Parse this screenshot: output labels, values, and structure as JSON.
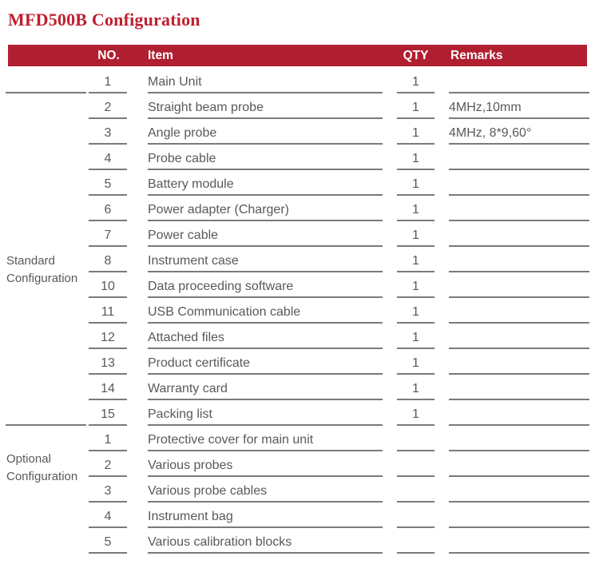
{
  "title": "MFD500B Configuration",
  "colors": {
    "title": "#C01F2F",
    "header_bg": "#B01F30",
    "text": "#595959",
    "line": "#7A7A7A",
    "header_text": "#FFFFFF"
  },
  "table": {
    "columns": [
      "NO.",
      "Item",
      "QTY",
      "Remarks"
    ],
    "sections": [
      {
        "label": "Standard Configuration",
        "rows": [
          {
            "no": "1",
            "item": "Main Unit",
            "qty": "1",
            "remarks": ""
          },
          {
            "no": "2",
            "item": "Straight beam probe",
            "qty": "1",
            "remarks": "4MHz,10mm"
          },
          {
            "no": "3",
            "item": "Angle probe",
            "qty": "1",
            "remarks": "4MHz, 8*9,60°"
          },
          {
            "no": "4",
            "item": "Probe cable",
            "qty": "1",
            "remarks": ""
          },
          {
            "no": "5",
            "item": "Battery module",
            "qty": "1",
            "remarks": ""
          },
          {
            "no": "6",
            "item": "Power adapter (Charger)",
            "qty": "1",
            "remarks": ""
          },
          {
            "no": "7",
            "item": "Power cable",
            "qty": "1",
            "remarks": ""
          },
          {
            "no": "8",
            "item": "Instrument case",
            "qty": "1",
            "remarks": ""
          },
          {
            "no": "10",
            "item": "Data proceeding software",
            "qty": "1",
            "remarks": ""
          },
          {
            "no": "11",
            "item": "USB Communication cable",
            "qty": "1",
            "remarks": ""
          },
          {
            "no": "12",
            "item": "Attached files",
            "qty": "1",
            "remarks": ""
          },
          {
            "no": "13",
            "item": "Product certificate",
            "qty": "1",
            "remarks": ""
          },
          {
            "no": "14",
            "item": "Warranty card",
            "qty": "1",
            "remarks": ""
          },
          {
            "no": "15",
            "item": "Packing list",
            "qty": "1",
            "remarks": ""
          }
        ]
      },
      {
        "label": "Optional Configuration",
        "rows": [
          {
            "no": "1",
            "item": "Protective cover for main unit",
            "qty": "",
            "remarks": ""
          },
          {
            "no": "2",
            "item": "Various probes",
            "qty": "",
            "remarks": ""
          },
          {
            "no": "3",
            "item": "Various probe cables",
            "qty": "",
            "remarks": ""
          },
          {
            "no": "4",
            "item": "Instrument bag",
            "qty": "",
            "remarks": ""
          },
          {
            "no": "5",
            "item": "Various calibration blocks",
            "qty": "",
            "remarks": ""
          }
        ]
      }
    ]
  }
}
